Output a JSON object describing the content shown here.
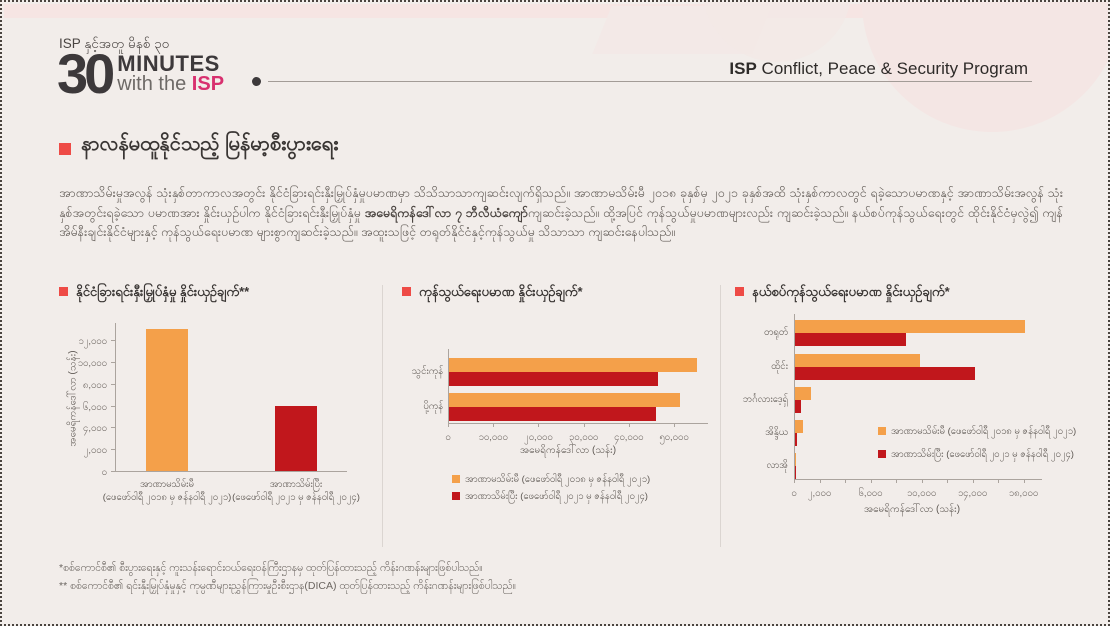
{
  "header": {
    "tagline": "ISP နှင့်အတူ မိနစ် ၃၀",
    "logo": {
      "number": "30",
      "minutes": "MINUTES",
      "with_the": "with the",
      "isp": "ISP"
    },
    "program_bold": "ISP",
    "program_rest": " Conflict, Peace & Security Program"
  },
  "section": {
    "title": "နာလန်မထူနိုင်သည့် မြန်မာ့စီးပွားရေး",
    "para_1": "အာဏာသိမ်းမှုအလွန် သုံးနှစ်တာကာလအတွင်း နိုင်ငံခြားရင်းနှီးမြှုပ်နှံမှုပမာဏမှာ သိသိသာသာကျဆင်းလျက်ရှိသည်။ အာဏာမသိမ်းမီ ၂၀၁၈ ခုနှစ်မှ ၂၀၂၁ ခုနှစ်အထိ သုံးနှစ်ကာလတွင် ရခဲ့သောပမာဏနှင့် အာဏာသိမ်းအလွန် သုံးနှစ်အတွင်းရခဲ့သော ပမာဏအား နှိုင်းယှဉ်ပါက နိုင်ငံခြားရင်းနှီးမြှုပ်နှံမှု ",
    "para_bold": "အမေရိကန်ဒေါ်လာ ၇ ဘီလီယံကျော်",
    "para_2": "ကျဆင်းခဲ့သည်။ ထို့အပြင် ကုန်သွယ်မှုပမာဏများလည်း ကျဆင်းခဲ့သည်။ နယ်စပ်ကုန်သွယ်ရေးတွင် ထိုင်းနိုင်ငံမှလွဲ၍ ကျန်အိမ်နီးချင်းနိုင်ငံများနှင့် ကုန်သွယ်ရေးပမာဏ များစွာကျဆင်းခဲ့သည်။ အထူးသဖြင့် တရုတ်နိုင်ငံနှင့်ကုန်သွယ်မှု သိသာသာ ကျဆင်းနေပါသည်။"
  },
  "colors": {
    "accent_red": "#EE4B46",
    "bar_orange": "#F4A04A",
    "bar_red": "#C1171C",
    "logo_magenta": "#D8306F",
    "background": "#F2EDEA"
  },
  "chart_data": [
    {
      "type": "bar",
      "title": "နိုင်ငံခြားရင်းနှီးမြှုပ်နှံမှု နှိုင်းယှဉ်ချက်**",
      "ylabel": "အမေရိကန်ဒေါ်လာ (သန်း)",
      "categories": [
        {
          "line1": "အာဏာမသိမ်းမီ",
          "line2": "(ဖေဖော်ဝါရီ ၂၀၁၈ မှ ဇန်နဝါရီ ၂၀၂၁)"
        },
        {
          "line1": "အာဏာသိမ်းပြီး",
          "line2": "(ဖေဖော်ဝါရီ ၂၀၂၁ မှ ဇန်နဝါရီ ၂၀၂၄)"
        }
      ],
      "values": [
        13000,
        6000
      ],
      "bar_colors": [
        "#F4A04A",
        "#C1171C"
      ],
      "ylim": [
        0,
        13500
      ],
      "yticks": [
        {
          "value": 0,
          "label": "၀"
        },
        {
          "value": 2000,
          "label": "၂,၀၀၀"
        },
        {
          "value": 4000,
          "label": "၄,၀၀၀"
        },
        {
          "value": 6000,
          "label": "၆,၀၀၀"
        },
        {
          "value": 8000,
          "label": "၈,၀၀၀"
        },
        {
          "value": 10000,
          "label": "၁၀,၀၀၀"
        },
        {
          "value": 12000,
          "label": "၁၂,၀၀၀"
        }
      ],
      "grid": false
    },
    {
      "type": "bar-horizontal",
      "title": "ကုန်သွယ်ရေးပမာဏ နှိုင်းယှဉ်ချက်*",
      "xlabel": "အမေရိကန်ဒေါ်လာ (သန်း)",
      "categories": [
        "သွင်းကုန်",
        "ပို့ကုန်"
      ],
      "series": [
        {
          "name": "အာဏာမသိမ်းမီ (ဖေဖော်ဝါရီ ၂၀၁၈ မှ ဇန်နဝါရီ ၂၀၂၁)",
          "color": "#F4A04A",
          "values": [
            54800,
            51000
          ]
        },
        {
          "name": "အာဏာသိမ်းပြီး (ဖေဖော်ဝါရီ ၂၀၂၁ မှ ဇန်နဝါရီ ၂၀၂၄)",
          "color": "#C1171C",
          "values": [
            46300,
            45700
          ]
        }
      ],
      "xlim": [
        0,
        57500
      ],
      "xticks": [
        {
          "value": 0,
          "label": "၀"
        },
        {
          "value": 10000,
          "label": "၁၀,၀၀၀"
        },
        {
          "value": 20000,
          "label": "၂၀,၀၀၀"
        },
        {
          "value": 30000,
          "label": "၃၀,၀၀၀"
        },
        {
          "value": 40000,
          "label": "၄၀,၀၀၀"
        },
        {
          "value": 50000,
          "label": "၅၀,၀၀၀"
        }
      ],
      "minor_xticks": [],
      "legend_position": "below",
      "grid": false
    },
    {
      "type": "bar-horizontal",
      "title": "နယ်စပ်ကုန်သွယ်ရေးပမာဏ နှိုင်းယှဉ်ချက်*",
      "xlabel": "အမေရိကန်ဒေါ်လာ (သန်း)",
      "categories": [
        "တရုတ်",
        "ထိုင်း",
        "ဘင်္ဂလားဒေ့ရှ်",
        "အိန္ဒိယ",
        "လာအို"
      ],
      "series": [
        {
          "name": "အာဏာမသိမ်းမီ (ဖေဖော်ဝါရီ ၂၀၁၈ မှ ဇန်နဝါရီ ၂၀၂၁)",
          "color": "#F4A04A",
          "values": [
            18000,
            9800,
            1250,
            650,
            80
          ]
        },
        {
          "name": "အာဏာသိမ်းပြီး (ဖေဖော်ဝါရီ ၂၀၂၁ မှ ဇန်နဝါရီ ၂၀၂၄)",
          "color": "#C1171C",
          "values": [
            8700,
            14100,
            500,
            150,
            40
          ]
        }
      ],
      "xlim": [
        0,
        19500
      ],
      "xticks": [
        {
          "value": 0,
          "label": "၀"
        },
        {
          "value": 2000,
          "label": "၂,၀၀၀"
        },
        {
          "value": 6000,
          "label": "၆,၀၀၀"
        },
        {
          "value": 10000,
          "label": "၁၀,၀၀၀"
        },
        {
          "value": 14000,
          "label": "၁၄,၀၀၀"
        },
        {
          "value": 18000,
          "label": "၁၈,၀၀၀"
        }
      ],
      "minor_xticks": [
        4000,
        8000,
        12000,
        16000
      ],
      "legend_position": "inside",
      "grid": false
    }
  ],
  "footnotes": [
    "*စစ်ကောင်စီ၏ စီးပွားရေးနှင့် ကူးသန်းရောင်းဝယ်ရေးဝန်ကြီးဌာနမှ ထုတ်ပြန်ထားသည့် ကိန်းဂဏန်းများဖြစ်ပါသည်။",
    "** စစ်ကောင်စီ၏ ရင်းနှီးမြှုပ်နှံမှုနှင့် ကုမ္ပဏီများညွှန်ကြားမှုဦးစီးဌာန(DICA) ထုတ်ပြန်ထားသည့် ကိန်းဂဏန်းများဖြစ်ပါသည်။"
  ]
}
